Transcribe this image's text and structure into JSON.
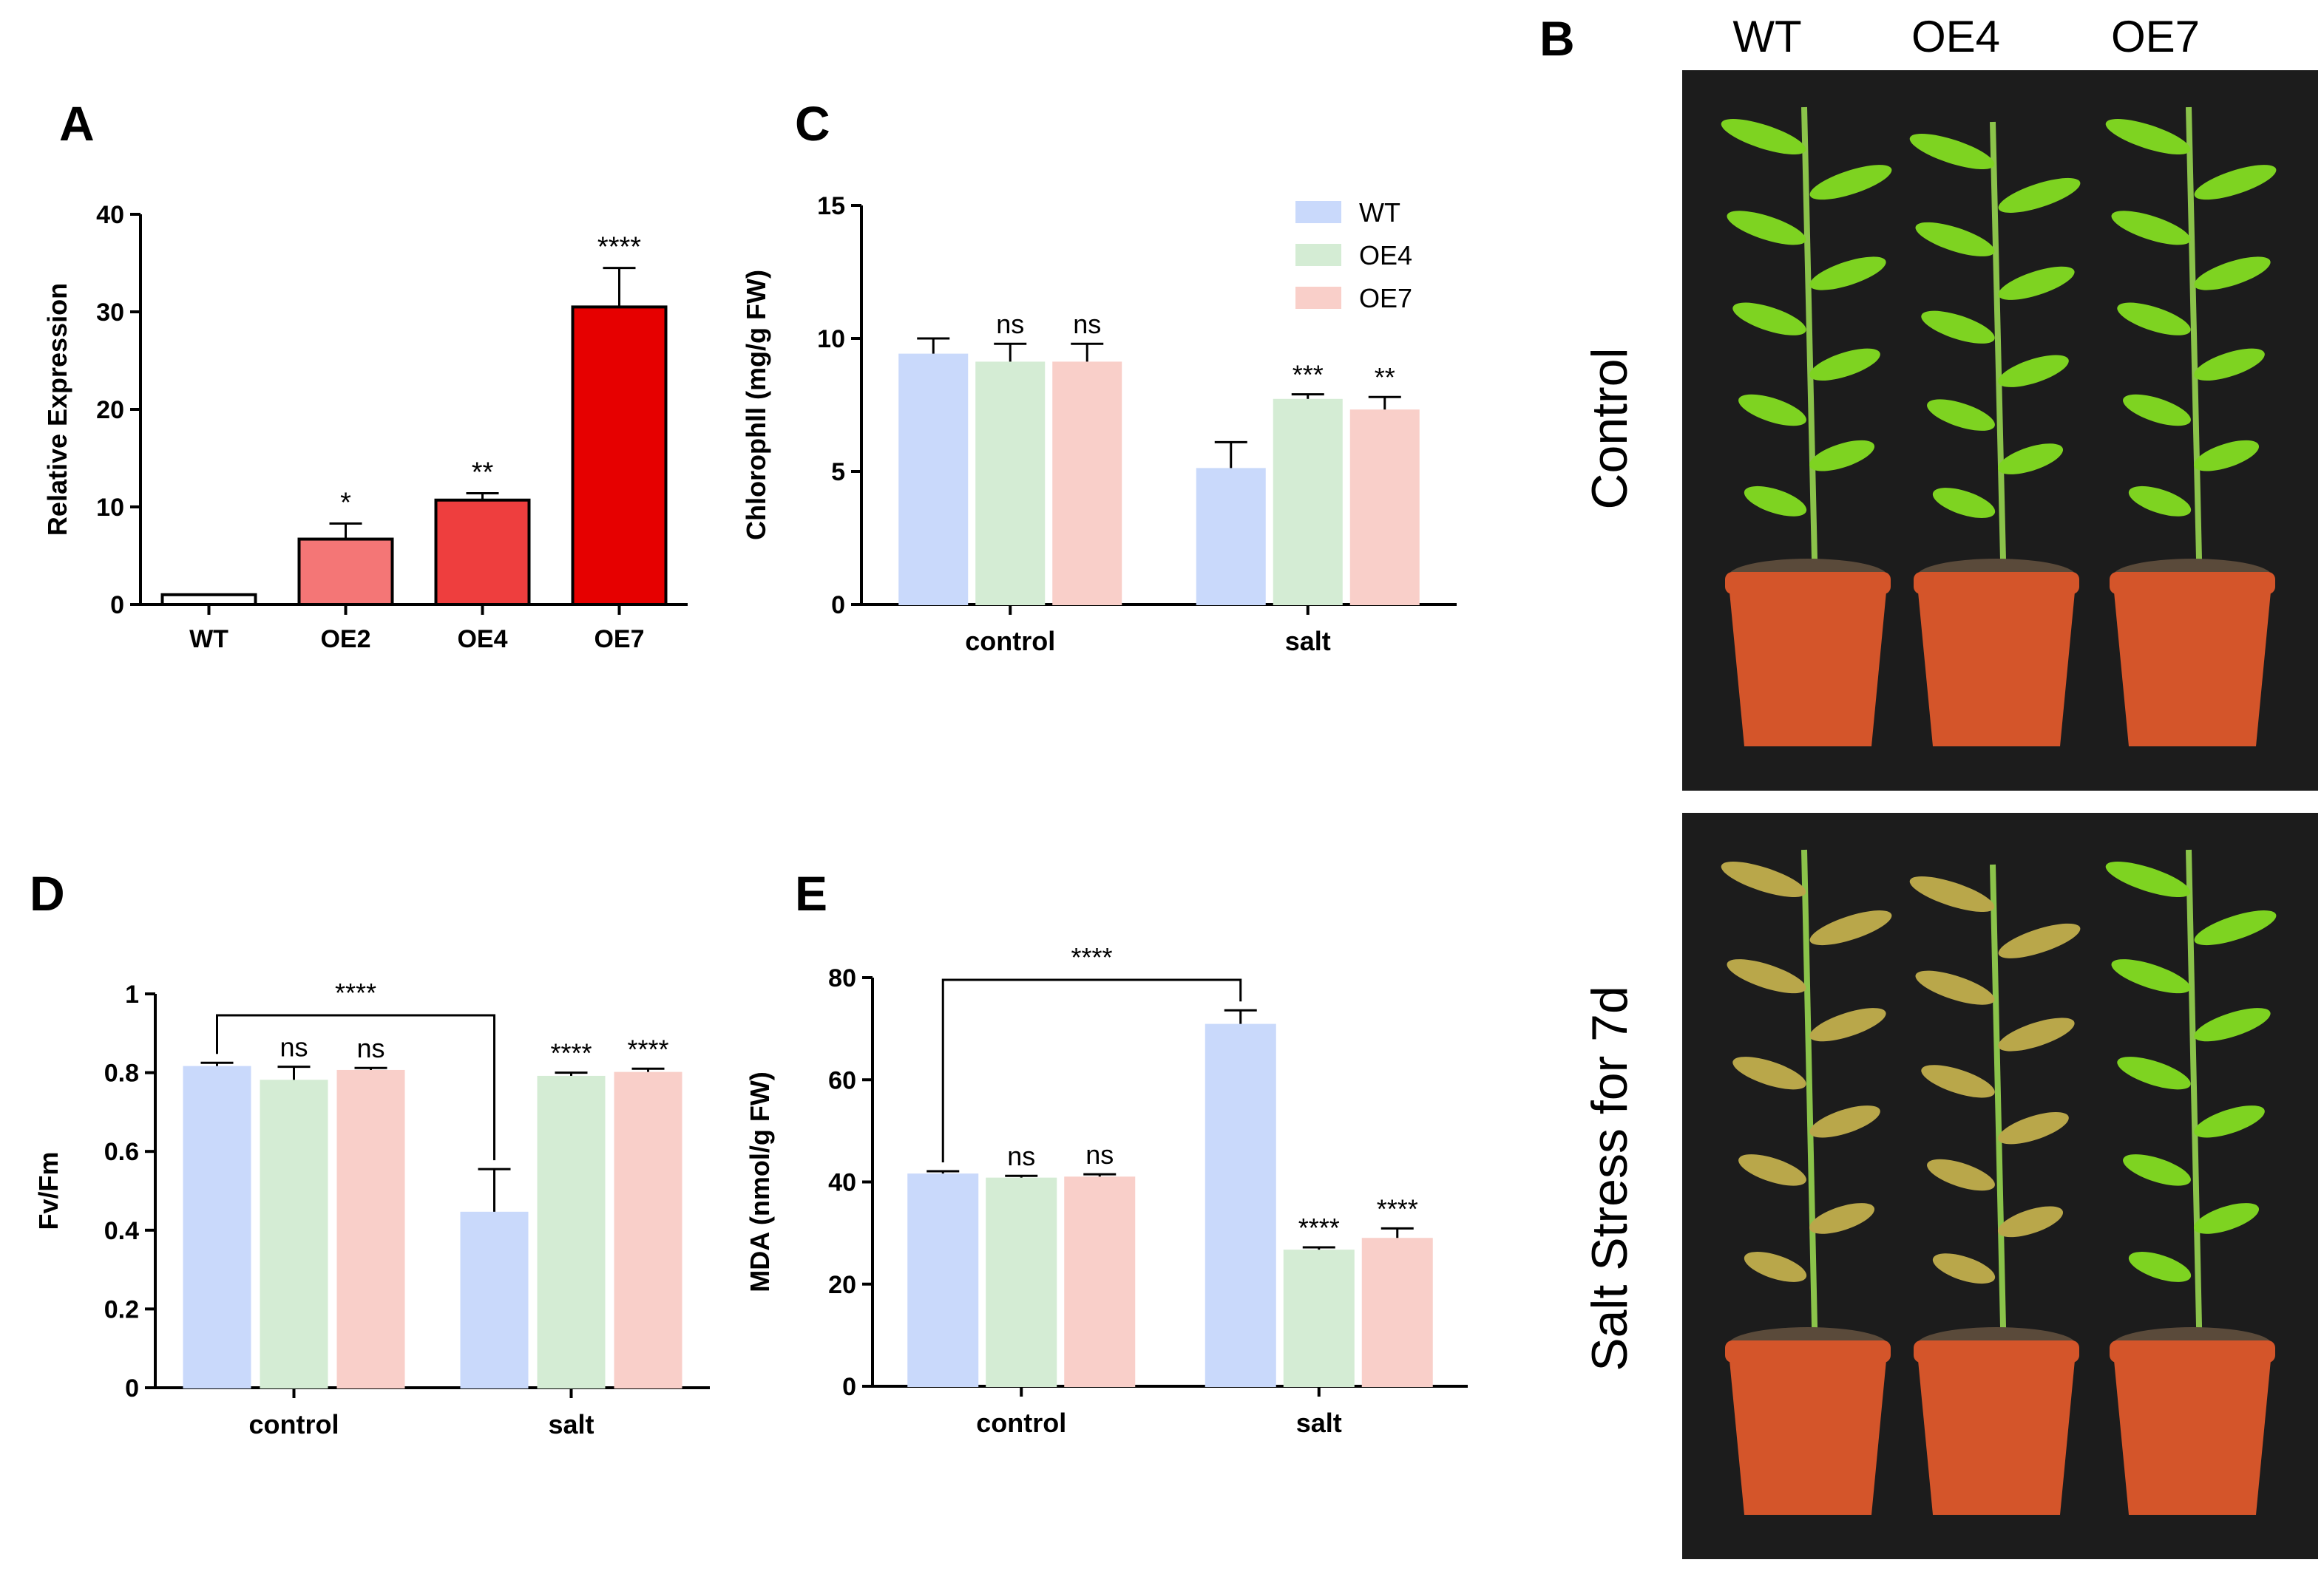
{
  "panel_labels": {
    "A": "A",
    "B": "B",
    "C": "C",
    "D": "D",
    "E": "E"
  },
  "photo": {
    "column_labels": [
      "WT",
      "OE4",
      "OE7"
    ],
    "row_labels": [
      "Control",
      "Salt Stress for 7d"
    ],
    "colors": {
      "background": "#1c1c1c",
      "pot": "#d4552a",
      "soil": "#5a4a3a",
      "leaf": "#7ed321",
      "leaf_stressed": "#b9a74a",
      "stem": "#8bc34a"
    }
  },
  "colors": {
    "WT": "#c9d9fb",
    "OE4": "#d4ecd4",
    "OE7": "#f9cfc9",
    "A_WT": "#ffffff",
    "A_OE2": "#f47676",
    "A_OE4": "#ee3e3e",
    "A_OE7": "#e60000",
    "bracket": "#000000"
  },
  "chart_data": [
    {
      "panel": "A",
      "type": "bar",
      "title": "",
      "xlabel": "",
      "ylabel": "Relative Expression",
      "categories": [
        "WT",
        "OE2",
        "OE4",
        "OE7"
      ],
      "values": [
        1.0,
        6.7,
        10.7,
        30.5
      ],
      "errors": [
        0.0,
        1.6,
        0.7,
        4.0
      ],
      "significance": [
        "",
        "*",
        "**",
        "****"
      ],
      "ylim": [
        0,
        40
      ],
      "yticks": [
        0,
        10,
        20,
        30,
        40
      ],
      "grid": false
    },
    {
      "panel": "C",
      "type": "bar",
      "title": "",
      "xlabel": "",
      "ylabel": "Chlorophll (mg/g FW)",
      "categories": [
        "control",
        "salt"
      ],
      "series": [
        {
          "name": "WT",
          "values": [
            9.4,
            5.1
          ],
          "errors": [
            0.6,
            1.0
          ]
        },
        {
          "name": "OE4",
          "values": [
            9.1,
            7.7
          ],
          "errors": [
            0.7,
            0.2
          ]
        },
        {
          "name": "OE7",
          "values": [
            9.1,
            7.3
          ],
          "errors": [
            0.7,
            0.5
          ]
        }
      ],
      "significance": [
        [
          "",
          "ns",
          "ns"
        ],
        [
          "",
          "***",
          "**"
        ]
      ],
      "legend": "top-right",
      "ylim": [
        0,
        15
      ],
      "yticks": [
        0,
        5,
        10,
        15
      ],
      "grid": false
    },
    {
      "panel": "D",
      "type": "bar",
      "title": "",
      "xlabel": "",
      "ylabel": "Fv/Fm",
      "categories": [
        "control",
        "salt"
      ],
      "series": [
        {
          "name": "WT",
          "values": [
            0.815,
            0.445
          ],
          "errors": [
            0.01,
            0.11
          ]
        },
        {
          "name": "OE4",
          "values": [
            0.78,
            0.79
          ],
          "errors": [
            0.035,
            0.01
          ]
        },
        {
          "name": "OE7",
          "values": [
            0.805,
            0.8
          ],
          "errors": [
            0.007,
            0.01
          ]
        }
      ],
      "significance": [
        [
          "",
          "ns",
          "ns"
        ],
        [
          "",
          "****",
          "****"
        ]
      ],
      "bracket": {
        "label": "****",
        "from": "control WT",
        "to": "salt WT"
      },
      "ylim": [
        0,
        1.0
      ],
      "yticks": [
        0.0,
        0.2,
        0.4,
        0.6,
        0.8,
        1.0
      ],
      "grid": false
    },
    {
      "panel": "E",
      "type": "bar",
      "title": "",
      "xlabel": "",
      "ylabel": "MDA (nmol/g FW)",
      "categories": [
        "control",
        "salt"
      ],
      "series": [
        {
          "name": "WT",
          "values": [
            41.5,
            70.8
          ],
          "errors": [
            0.6,
            2.8
          ]
        },
        {
          "name": "OE4",
          "values": [
            40.7,
            26.6
          ],
          "errors": [
            0.5,
            0.6
          ]
        },
        {
          "name": "OE7",
          "values": [
            40.9,
            28.9
          ],
          "errors": [
            0.6,
            2.0
          ]
        }
      ],
      "significance": [
        [
          "",
          "ns",
          "ns"
        ],
        [
          "",
          "****",
          "****"
        ]
      ],
      "bracket": {
        "label": "****",
        "from": "control WT",
        "to": "salt WT"
      },
      "ylim": [
        0,
        80
      ],
      "yticks": [
        0,
        20,
        40,
        60,
        80
      ],
      "grid": false
    }
  ]
}
